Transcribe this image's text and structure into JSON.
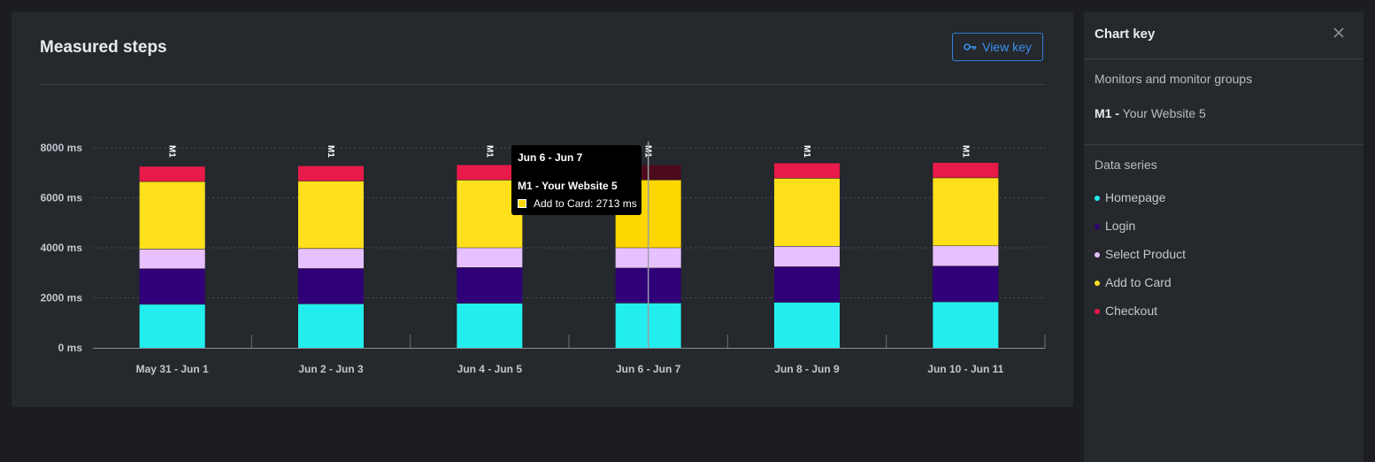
{
  "card": {
    "title": "Measured steps",
    "view_key_label": "View key"
  },
  "panel": {
    "title": "Chart key",
    "monitors_heading": "Monitors and monitor groups",
    "monitor_id": "M1 -",
    "monitor_name": "Your Website 5",
    "series_heading": "Data series"
  },
  "tooltip": {
    "date": "Jun 6 - Jun 7",
    "monitor": "M1 - Your Website 5",
    "row": "Add to Card: 2713 ms",
    "swatch_color": "#ffd700"
  },
  "chart_data": {
    "type": "bar",
    "stacked": true,
    "categories": [
      "May 31 - Jun 1",
      "Jun 2 - Jun 3",
      "Jun 4 - Jun 5",
      "Jun 6 - Jun 7",
      "Jun 8 - Jun 9",
      "Jun 10 - Jun 11"
    ],
    "bar_label": "M1",
    "y_ticks": [
      "0 ms",
      "2000 ms",
      "4000 ms",
      "6000 ms",
      "8000 ms"
    ],
    "ylim": [
      0,
      8000
    ],
    "y_tick_values": [
      0,
      2000,
      4000,
      6000,
      8000
    ],
    "grid": true,
    "highlighted_category": 3,
    "series": [
      {
        "name": "Homepage",
        "color": "#22eeee",
        "values": [
          1740,
          1760,
          1780,
          1790,
          1820,
          1840
        ]
      },
      {
        "name": "Login",
        "color": "#2f0077",
        "values": [
          1420,
          1410,
          1430,
          1400,
          1420,
          1430
        ]
      },
      {
        "name": "Select Product",
        "color": "#e7c0ff",
        "values": [
          790,
          800,
          790,
          810,
          820,
          810
        ]
      },
      {
        "name": "Add to Card",
        "color": "#ffe01a",
        "values": [
          2700,
          2700,
          2710,
          2713,
          2720,
          2720
        ]
      },
      {
        "name": "Checkout",
        "color": "#e81a49",
        "values": [
          600,
          600,
          600,
          590,
          600,
          600
        ]
      }
    ]
  }
}
